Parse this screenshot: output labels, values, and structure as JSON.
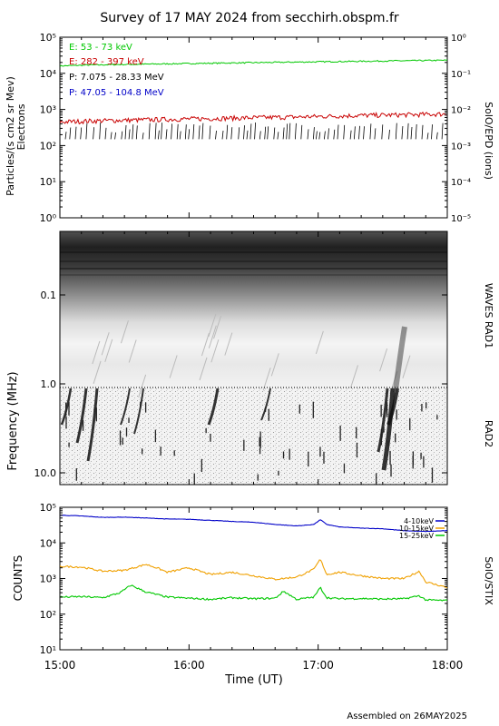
{
  "title": "Survey of 17 MAY 2024 from secchirh.obspm.fr",
  "footer": "Assembled on 26MAY2025",
  "colors": {
    "e_low": "#00c800",
    "e_high": "#c80000",
    "p_low": "#000000",
    "p_high": "#0000c8",
    "stix_low": "#0000c8",
    "stix_mid": "#f0a000",
    "stix_high": "#00c800"
  },
  "chart_data": [
    {
      "type": "line",
      "panel": "epd",
      "ylabel": "Particles/(s cm2 sr Mev)",
      "ylabel2": "Electrons",
      "right_label": "SolO/EPD (ions)",
      "yscale": "log",
      "ylim": [
        1,
        100000
      ],
      "yticks": [
        "10⁰",
        "10¹",
        "10²",
        "10³",
        "10⁴",
        "10⁵"
      ],
      "y2lim": [
        1e-05,
        1
      ],
      "y2ticks": [
        "10⁻⁵",
        "10⁻⁴",
        "10⁻³",
        "10⁻²",
        "10⁻¹",
        "10⁰"
      ],
      "xlim": [
        "15:00",
        "18:00"
      ],
      "series": [
        {
          "name": "E: 53 - 73 keV",
          "color": "#00c800",
          "values": [
            16000,
            17000,
            17500,
            18000,
            18500,
            19000,
            19500,
            20000,
            20500,
            21000,
            21500,
            22000,
            22500,
            23000
          ]
        },
        {
          "name": "E: 282 - 397 keV",
          "color": "#c80000",
          "values": [
            450,
            480,
            500,
            520,
            540,
            560,
            580,
            600,
            620,
            650,
            680,
            700,
            720,
            750
          ]
        },
        {
          "name": "P: 7.075 - 28.33 MeV",
          "color": "#000000",
          "values": [
            150,
            300,
            150,
            280,
            150,
            320,
            150,
            290,
            150,
            310,
            150,
            300,
            150,
            260
          ]
        },
        {
          "name": "P: 47.05 - 104.8 MeV",
          "color": "#0000c8",
          "values": []
        }
      ]
    },
    {
      "type": "heatmap",
      "panel": "waves",
      "ylabel": "Frequency (MHz)",
      "right_label": "WAVES RAD1",
      "right_label2": "RAD2",
      "yscale": "log",
      "yticks": [
        "0.1",
        "1.0",
        "10.0"
      ],
      "xlim": [
        "15:00",
        "18:00"
      ]
    },
    {
      "type": "line",
      "panel": "stix",
      "ylabel": "COUNTS",
      "right_label": "SolO/STIX",
      "xlabel": "Time (UT)",
      "yscale": "log",
      "ylim": [
        10,
        100000
      ],
      "yticks": [
        "10¹",
        "10²",
        "10³",
        "10⁴",
        "10⁵"
      ],
      "xticks": [
        "15:00",
        "16:00",
        "17:00",
        "18:00"
      ],
      "xlim": [
        "15:00",
        "18:00"
      ],
      "series": [
        {
          "name": "4-10keV",
          "color": "#0000c8",
          "values": [
            [
              0,
              60000
            ],
            [
              10,
              57000
            ],
            [
              20,
              52000
            ],
            [
              30,
              53000
            ],
            [
              40,
              50000
            ],
            [
              50,
              47000
            ],
            [
              60,
              46000
            ],
            [
              70,
              43000
            ],
            [
              80,
              40000
            ],
            [
              90,
              38000
            ],
            [
              100,
              33000
            ],
            [
              110,
              30000
            ],
            [
              118,
              33000
            ],
            [
              121,
              45000
            ],
            [
              124,
              33000
            ],
            [
              130,
              28000
            ],
            [
              140,
              26000
            ],
            [
              150,
              25000
            ],
            [
              160,
              22000
            ],
            [
              170,
              21000
            ],
            [
              180,
              22000
            ]
          ]
        },
        {
          "name": "10-15keV",
          "color": "#f0a000",
          "values": [
            [
              0,
              2200
            ],
            [
              10,
              2100
            ],
            [
              20,
              1600
            ],
            [
              30,
              1700
            ],
            [
              40,
              2500
            ],
            [
              45,
              2000
            ],
            [
              50,
              1500
            ],
            [
              60,
              2000
            ],
            [
              70,
              1300
            ],
            [
              80,
              1500
            ],
            [
              90,
              1200
            ],
            [
              100,
              950
            ],
            [
              110,
              1100
            ],
            [
              118,
              1800
            ],
            [
              121,
              3500
            ],
            [
              124,
              1300
            ],
            [
              130,
              1500
            ],
            [
              140,
              1200
            ],
            [
              150,
              1000
            ],
            [
              160,
              1000
            ],
            [
              167,
              1600
            ],
            [
              170,
              800
            ],
            [
              180,
              560
            ]
          ]
        },
        {
          "name": "15-25keV",
          "color": "#00c800",
          "values": [
            [
              0,
              300
            ],
            [
              10,
              310
            ],
            [
              20,
              290
            ],
            [
              28,
              400
            ],
            [
              33,
              650
            ],
            [
              40,
              420
            ],
            [
              50,
              300
            ],
            [
              60,
              280
            ],
            [
              70,
              260
            ],
            [
              80,
              290
            ],
            [
              90,
              270
            ],
            [
              100,
              280
            ],
            [
              104,
              440
            ],
            [
              110,
              260
            ],
            [
              118,
              300
            ],
            [
              121,
              560
            ],
            [
              124,
              290
            ],
            [
              130,
              270
            ],
            [
              140,
              275
            ],
            [
              150,
              265
            ],
            [
              160,
              270
            ],
            [
              167,
              330
            ],
            [
              170,
              250
            ],
            [
              180,
              240
            ]
          ]
        }
      ]
    }
  ]
}
